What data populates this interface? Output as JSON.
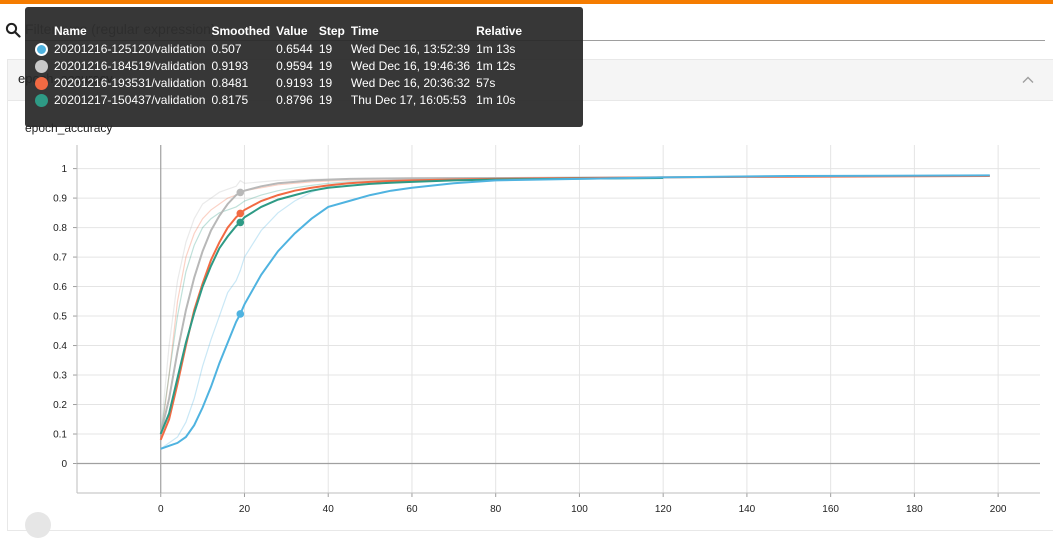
{
  "filter": {
    "placeholder": "Filter runs (regular expression)"
  },
  "card": {
    "header_title": "epoch_accuracy"
  },
  "chart_data": {
    "type": "line",
    "title": "epoch_accuracy",
    "xlim": [
      -20,
      210
    ],
    "ylim": [
      -0.1,
      1.08
    ],
    "x_ticks": [
      0,
      20,
      40,
      60,
      80,
      100,
      120,
      140,
      160,
      180,
      200
    ],
    "y_ticks": [
      0,
      0.1,
      0.2,
      0.3,
      0.4,
      0.5,
      0.6,
      0.7,
      0.8,
      0.9,
      1
    ],
    "x_tick_labels": [
      "0",
      "20",
      "40",
      "60",
      "80",
      "100",
      "120",
      "140",
      "160",
      "180",
      "200"
    ],
    "y_tick_labels": [
      "0",
      "0.1",
      "0.2",
      "0.3",
      "0.4",
      "0.5",
      "0.6",
      "0.7",
      "0.8",
      "0.9",
      "1"
    ],
    "grid": true,
    "highlight_step": 19,
    "series": [
      {
        "name": "20201216-125120/validation",
        "color": "#4fb3e0",
        "x": [
          0,
          2,
          4,
          6,
          8,
          10,
          12,
          14,
          16,
          18,
          19,
          20,
          24,
          28,
          32,
          36,
          40,
          45,
          50,
          55,
          60,
          70,
          80,
          100,
          120,
          150,
          198
        ],
        "smoothed": [
          0.05,
          0.06,
          0.07,
          0.09,
          0.13,
          0.19,
          0.26,
          0.34,
          0.41,
          0.48,
          0.507,
          0.54,
          0.64,
          0.72,
          0.78,
          0.83,
          0.87,
          0.89,
          0.91,
          0.925,
          0.935,
          0.95,
          0.96,
          0.965,
          0.97,
          0.975,
          0.977
        ],
        "raw": [
          0.05,
          0.07,
          0.09,
          0.14,
          0.22,
          0.33,
          0.42,
          0.5,
          0.58,
          0.62,
          0.6544,
          0.7,
          0.79,
          0.85,
          0.89,
          0.92,
          0.94,
          0.95,
          0.955,
          0.96,
          0.962,
          0.965,
          0.968,
          0.97,
          0.972,
          0.975,
          0.977
        ]
      },
      {
        "name": "20201216-184519/validation",
        "color": "#b8b8b8",
        "x": [
          0,
          2,
          4,
          6,
          8,
          10,
          12,
          14,
          16,
          18,
          19,
          20,
          24,
          28,
          32,
          36,
          40,
          45,
          50,
          60,
          80,
          100,
          120
        ],
        "smoothed": [
          0.1,
          0.22,
          0.38,
          0.52,
          0.63,
          0.72,
          0.79,
          0.84,
          0.88,
          0.91,
          0.9193,
          0.925,
          0.94,
          0.95,
          0.955,
          0.96,
          0.962,
          0.965,
          0.966,
          0.967,
          0.968,
          0.969,
          0.97
        ],
        "raw": [
          0.1,
          0.4,
          0.62,
          0.75,
          0.83,
          0.88,
          0.9,
          0.92,
          0.93,
          0.94,
          0.9594,
          0.95,
          0.955,
          0.96,
          0.962,
          0.963,
          0.965,
          0.966,
          0.967,
          0.968,
          0.969,
          0.97,
          0.97
        ]
      },
      {
        "name": "20201216-193531/validation",
        "color": "#f26a43",
        "x": [
          0,
          2,
          4,
          6,
          8,
          10,
          12,
          14,
          16,
          18,
          19,
          20,
          24,
          28,
          32,
          36,
          40,
          45,
          50,
          55,
          60,
          70,
          80,
          100,
          120,
          140,
          160,
          198
        ],
        "smoothed": [
          0.08,
          0.15,
          0.27,
          0.4,
          0.52,
          0.61,
          0.69,
          0.75,
          0.8,
          0.835,
          0.8481,
          0.86,
          0.89,
          0.91,
          0.925,
          0.935,
          0.943,
          0.95,
          0.955,
          0.958,
          0.96,
          0.963,
          0.965,
          0.968,
          0.97,
          0.972,
          0.973,
          0.975
        ],
        "raw": [
          0.08,
          0.3,
          0.55,
          0.7,
          0.78,
          0.83,
          0.86,
          0.88,
          0.9,
          0.91,
          0.9193,
          0.925,
          0.935,
          0.945,
          0.95,
          0.955,
          0.958,
          0.96,
          0.962,
          0.963,
          0.965,
          0.966,
          0.967,
          0.969,
          0.97,
          0.972,
          0.973,
          0.975
        ]
      },
      {
        "name": "20201217-150437/validation",
        "color": "#2e9a85",
        "x": [
          0,
          2,
          4,
          6,
          8,
          10,
          12,
          14,
          16,
          18,
          19,
          20,
          24,
          28,
          32,
          36,
          40,
          45,
          50,
          55,
          60,
          70,
          80,
          100,
          120
        ],
        "smoothed": [
          0.1,
          0.17,
          0.29,
          0.41,
          0.51,
          0.6,
          0.67,
          0.73,
          0.77,
          0.805,
          0.8175,
          0.835,
          0.87,
          0.895,
          0.91,
          0.925,
          0.935,
          0.942,
          0.948,
          0.952,
          0.955,
          0.96,
          0.963,
          0.966,
          0.968
        ],
        "raw": [
          0.1,
          0.3,
          0.5,
          0.65,
          0.74,
          0.8,
          0.83,
          0.85,
          0.86,
          0.87,
          0.8796,
          0.89,
          0.91,
          0.925,
          0.935,
          0.943,
          0.95,
          0.955,
          0.958,
          0.96,
          0.962,
          0.964,
          0.966,
          0.968,
          0.97
        ]
      }
    ]
  },
  "tooltip": {
    "headers": [
      "Name",
      "Smoothed",
      "Value",
      "Step",
      "Time",
      "Relative"
    ],
    "rows": [
      {
        "name": "20201216-125120/validation",
        "smoothed": "0.507",
        "value": "0.6544",
        "step": "19",
        "time": "Wed Dec 16, 13:52:39",
        "relative": "1m 13s",
        "color": "#4fb3e0"
      },
      {
        "name": "20201216-184519/validation",
        "smoothed": "0.9193",
        "value": "0.9594",
        "step": "19",
        "time": "Wed Dec 16, 19:46:36",
        "relative": "1m 12s",
        "color": "#c9c9c9"
      },
      {
        "name": "20201216-193531/validation",
        "smoothed": "0.8481",
        "value": "0.9193",
        "step": "19",
        "time": "Wed Dec 16, 20:36:32",
        "relative": "57s",
        "color": "#f26a43"
      },
      {
        "name": "20201217-150437/validation",
        "smoothed": "0.8175",
        "value": "0.8796",
        "step": "19",
        "time": "Thu Dec 17, 16:05:53",
        "relative": "1m 10s",
        "color": "#2e9a85"
      }
    ]
  }
}
